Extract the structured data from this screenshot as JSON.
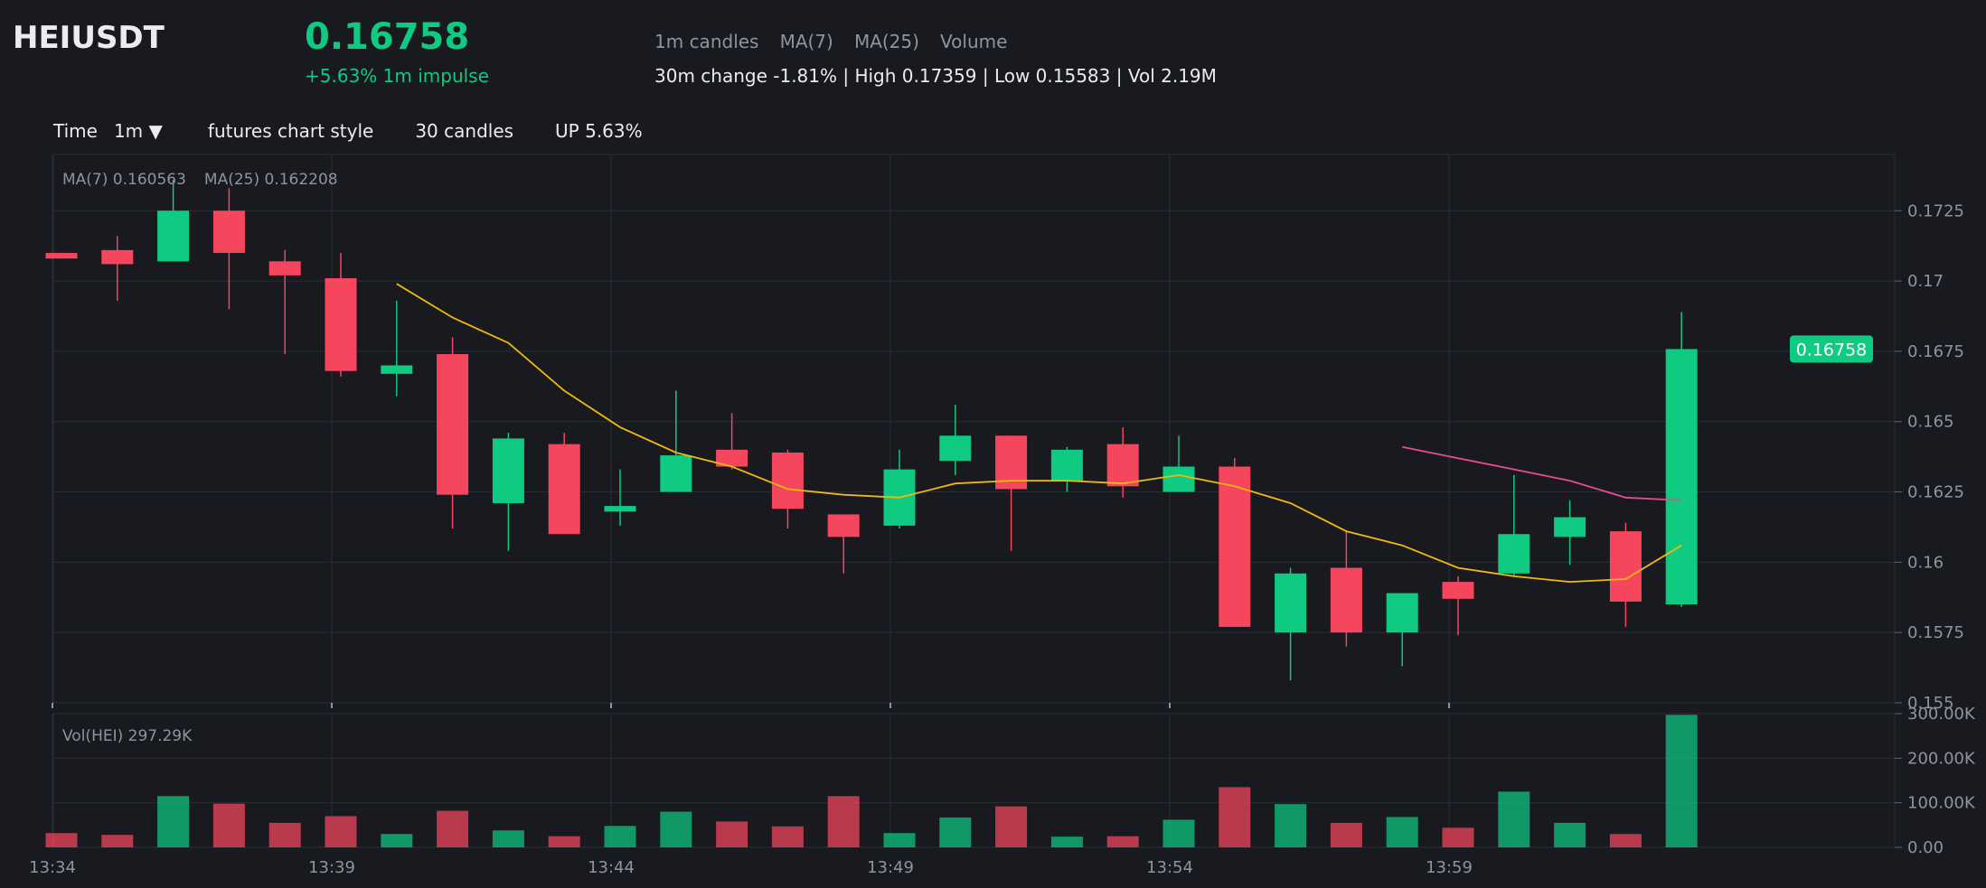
{
  "header": {
    "symbol": "HEIUSDT",
    "price": "0.16758",
    "impulse": "+5.63% 1m impulse",
    "indicators": [
      "1m candles",
      "MA(7)",
      "MA(25)",
      "Volume"
    ],
    "stats": "30m change -1.81% | High 0.17359 | Low 0.15583 | Vol 2.19M"
  },
  "toolbar": {
    "time_label": "Time",
    "interval": "1m ▼",
    "style": "futures chart style",
    "candles": "30 candles",
    "up": "UP 5.63%"
  },
  "legend": {
    "ma7": "MA(7) 0.160563",
    "ma25": "MA(25) 0.162208",
    "vol": "Vol(HEI) 297.29K"
  },
  "colors": {
    "up": "#0ecb81",
    "down": "#f6465d",
    "ma7": "#f0b90b",
    "ma25": "#e84a94",
    "background": "#181a20",
    "grid": "#2a2d35"
  },
  "chart_data": {
    "type": "candlestick",
    "price_axis": {
      "ylim": [
        0.155,
        0.1745
      ],
      "ticks": [
        0.155,
        0.1575,
        0.16,
        0.1625,
        0.165,
        0.1675,
        0.17,
        0.1725
      ],
      "tick_labels": [
        "0.155",
        "0.1575",
        "0.16",
        "0.1625",
        "0.165",
        "0.1675",
        "0.17",
        "0.1725"
      ],
      "last_price_label": "0.16758",
      "last_price": 0.16758
    },
    "volume_axis": {
      "ylim": [
        0,
        300000
      ],
      "ticks": [
        0,
        100000,
        200000,
        300000
      ],
      "tick_labels": [
        "0.00",
        "100.00K",
        "200.00K",
        "300.00K"
      ]
    },
    "time_axis": {
      "tick_labels": [
        "13:34",
        "13:39",
        "13:44",
        "13:49",
        "13:54",
        "13:59"
      ],
      "tick_index": [
        0,
        5,
        10,
        15,
        20,
        25
      ]
    },
    "candles": [
      {
        "t": "13:34",
        "o": 0.171,
        "h": 0.171,
        "l": 0.1708,
        "c": 0.1708,
        "v": 32000
      },
      {
        "t": "13:35",
        "o": 0.1711,
        "h": 0.1716,
        "l": 0.1693,
        "c": 0.1706,
        "v": 28000
      },
      {
        "t": "13:36",
        "o": 0.1707,
        "h": 0.1736,
        "l": 0.1707,
        "c": 0.1725,
        "v": 115000
      },
      {
        "t": "13:37",
        "o": 0.1725,
        "h": 0.1733,
        "l": 0.169,
        "c": 0.171,
        "v": 98000
      },
      {
        "t": "13:38",
        "o": 0.1707,
        "h": 0.1711,
        "l": 0.1674,
        "c": 0.1702,
        "v": 55000
      },
      {
        "t": "13:39",
        "o": 0.1701,
        "h": 0.171,
        "l": 0.1666,
        "c": 0.1668,
        "v": 70000
      },
      {
        "t": "13:40",
        "o": 0.1667,
        "h": 0.1693,
        "l": 0.1659,
        "c": 0.167,
        "v": 30000
      },
      {
        "t": "13:41",
        "o": 0.1674,
        "h": 0.168,
        "l": 0.1612,
        "c": 0.1624,
        "v": 82000
      },
      {
        "t": "13:42",
        "o": 0.1621,
        "h": 0.1646,
        "l": 0.1604,
        "c": 0.1644,
        "v": 38000
      },
      {
        "t": "13:43",
        "o": 0.1642,
        "h": 0.1646,
        "l": 0.161,
        "c": 0.161,
        "v": 25000
      },
      {
        "t": "13:44",
        "o": 0.1618,
        "h": 0.1633,
        "l": 0.1613,
        "c": 0.162,
        "v": 48000
      },
      {
        "t": "13:45",
        "o": 0.1625,
        "h": 0.1661,
        "l": 0.1625,
        "c": 0.1638,
        "v": 80000
      },
      {
        "t": "13:46",
        "o": 0.164,
        "h": 0.1653,
        "l": 0.1633,
        "c": 0.1634,
        "v": 58000
      },
      {
        "t": "13:47",
        "o": 0.1639,
        "h": 0.164,
        "l": 0.1612,
        "c": 0.1619,
        "v": 47000
      },
      {
        "t": "13:48",
        "o": 0.1617,
        "h": 0.1617,
        "l": 0.1596,
        "c": 0.1609,
        "v": 115000
      },
      {
        "t": "13:49",
        "o": 0.1613,
        "h": 0.164,
        "l": 0.1612,
        "c": 0.1633,
        "v": 32000
      },
      {
        "t": "13:50",
        "o": 0.1636,
        "h": 0.1656,
        "l": 0.1631,
        "c": 0.1645,
        "v": 67000
      },
      {
        "t": "13:51",
        "o": 0.1645,
        "h": 0.1645,
        "l": 0.1604,
        "c": 0.1626,
        "v": 92000
      },
      {
        "t": "13:52",
        "o": 0.1629,
        "h": 0.1641,
        "l": 0.1625,
        "c": 0.164,
        "v": 24000
      },
      {
        "t": "13:53",
        "o": 0.1642,
        "h": 0.1648,
        "l": 0.1623,
        "c": 0.1627,
        "v": 25000
      },
      {
        "t": "13:54",
        "o": 0.1625,
        "h": 0.1645,
        "l": 0.1625,
        "c": 0.1634,
        "v": 62000
      },
      {
        "t": "13:55",
        "o": 0.1634,
        "h": 0.1637,
        "l": 0.1577,
        "c": 0.1577,
        "v": 135000
      },
      {
        "t": "13:56",
        "o": 0.1575,
        "h": 0.1598,
        "l": 0.1558,
        "c": 0.1596,
        "v": 97000
      },
      {
        "t": "13:57",
        "o": 0.1598,
        "h": 0.1611,
        "l": 0.157,
        "c": 0.1575,
        "v": 55000
      },
      {
        "t": "13:58",
        "o": 0.1575,
        "h": 0.1589,
        "l": 0.1563,
        "c": 0.1589,
        "v": 68000
      },
      {
        "t": "13:59",
        "o": 0.1593,
        "h": 0.1595,
        "l": 0.1574,
        "c": 0.1587,
        "v": 44000
      },
      {
        "t": "14:00",
        "o": 0.1596,
        "h": 0.1631,
        "l": 0.1595,
        "c": 0.161,
        "v": 125000
      },
      {
        "t": "14:01",
        "o": 0.1609,
        "h": 0.1622,
        "l": 0.1599,
        "c": 0.1616,
        "v": 55000
      },
      {
        "t": "14:02",
        "o": 0.1611,
        "h": 0.1614,
        "l": 0.1577,
        "c": 0.1586,
        "v": 30000
      },
      {
        "t": "14:03",
        "o": 0.1585,
        "h": 0.1689,
        "l": 0.1584,
        "c": 0.16758,
        "v": 297290
      }
    ],
    "ma7": [
      null,
      null,
      null,
      null,
      null,
      null,
      0.1699,
      0.1687,
      0.1678,
      0.1661,
      0.1648,
      0.1639,
      0.1634,
      0.1626,
      0.1624,
      0.1623,
      0.1628,
      0.1629,
      0.1629,
      0.1628,
      0.1631,
      0.1627,
      0.1621,
      0.1611,
      0.1606,
      0.1598,
      0.1595,
      0.1593,
      0.1594,
      0.1606
    ],
    "ma25": [
      null,
      null,
      null,
      null,
      null,
      null,
      null,
      null,
      null,
      null,
      null,
      null,
      null,
      null,
      null,
      null,
      null,
      null,
      null,
      null,
      null,
      null,
      null,
      null,
      0.1641,
      0.1637,
      0.1633,
      0.1629,
      0.1623,
      0.1622
    ]
  }
}
